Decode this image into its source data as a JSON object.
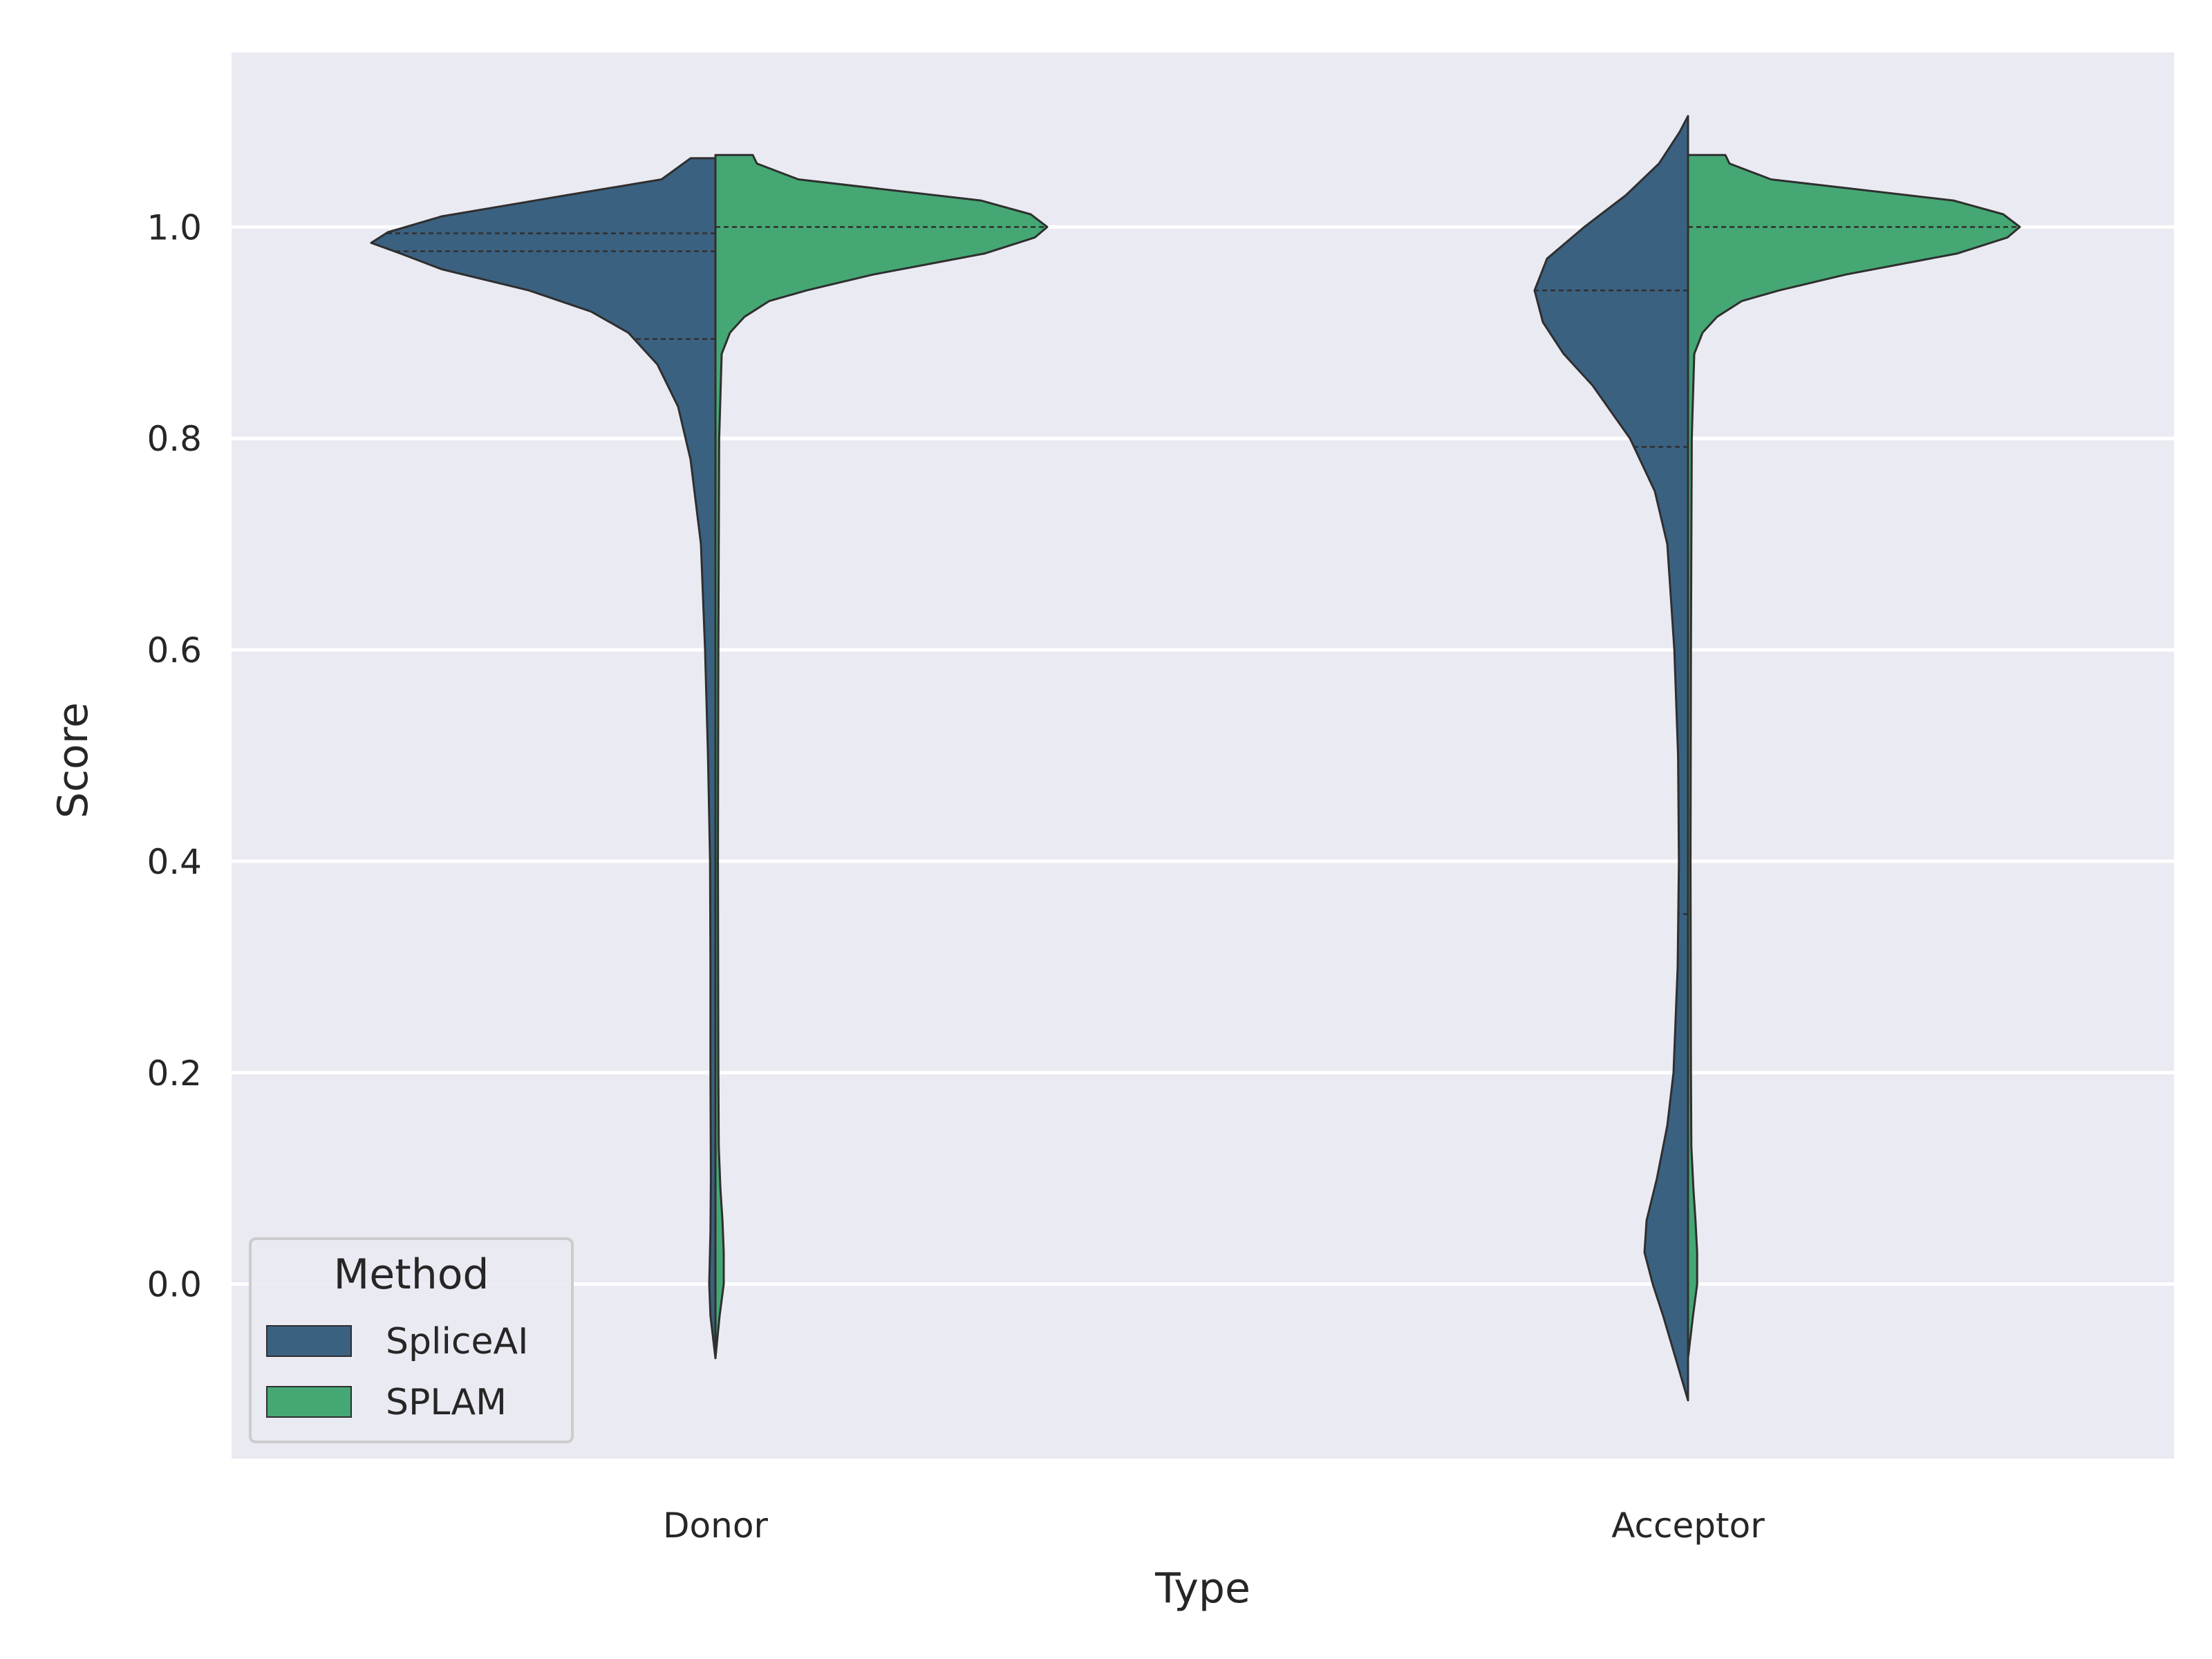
{
  "chart_data": {
    "type": "violin",
    "split": true,
    "inner": "quartile",
    "xlabel": "Type",
    "ylabel": "Score",
    "categories": [
      "Donor",
      "Acceptor"
    ],
    "y_ticks": [
      "0.0",
      "0.2",
      "0.4",
      "0.6",
      "0.8",
      "1.0"
    ],
    "ylim": [
      -0.165,
      1.165
    ],
    "grid": true,
    "legend": {
      "title": "Method",
      "placement": "lower-left",
      "entries": [
        "SpliceAI",
        "SPLAM"
      ]
    },
    "colors": {
      "SpliceAI": "#3b6181",
      "SPLAM": "#45a874",
      "background": "#eaeaf2",
      "grid": "#ffffff",
      "outline": "#2f2f2f"
    },
    "series": [
      {
        "name": "SpliceAI",
        "side": "left",
        "violins": [
          {
            "category": "Donor",
            "range": [
              -0.07,
              1.065
            ],
            "quartiles": [
              0.894,
              0.977,
              0.994
            ],
            "density": [
              [
                -0.07,
                0.0
              ],
              [
                -0.03,
                0.012
              ],
              [
                0.0,
                0.015
              ],
              [
                0.05,
                0.012
              ],
              [
                0.1,
                0.011
              ],
              [
                0.2,
                0.012
              ],
              [
                0.3,
                0.012
              ],
              [
                0.4,
                0.013
              ],
              [
                0.5,
                0.018
              ],
              [
                0.6,
                0.025
              ],
              [
                0.7,
                0.035
              ],
              [
                0.78,
                0.06
              ],
              [
                0.83,
                0.09
              ],
              [
                0.87,
                0.14
              ],
              [
                0.9,
                0.21
              ],
              [
                0.92,
                0.3
              ],
              [
                0.94,
                0.45
              ],
              [
                0.96,
                0.66
              ],
              [
                0.975,
                0.76
              ],
              [
                0.985,
                0.83
              ],
              [
                0.995,
                0.79
              ],
              [
                1.01,
                0.66
              ],
              [
                1.03,
                0.36
              ],
              [
                1.045,
                0.13
              ],
              [
                1.065,
                0.06
              ]
            ]
          },
          {
            "category": "Acceptor",
            "range": [
              -0.11,
              1.105
            ],
            "quartiles": [
              0.35,
              0.792,
              0.94
            ],
            "density": [
              [
                -0.11,
                0.0
              ],
              [
                -0.07,
                0.03
              ],
              [
                -0.03,
                0.06
              ],
              [
                0.0,
                0.085
              ],
              [
                0.03,
                0.105
              ],
              [
                0.06,
                0.1
              ],
              [
                0.1,
                0.075
              ],
              [
                0.15,
                0.05
              ],
              [
                0.2,
                0.035
              ],
              [
                0.3,
                0.025
              ],
              [
                0.4,
                0.022
              ],
              [
                0.5,
                0.024
              ],
              [
                0.6,
                0.033
              ],
              [
                0.7,
                0.05
              ],
              [
                0.75,
                0.08
              ],
              [
                0.8,
                0.14
              ],
              [
                0.85,
                0.23
              ],
              [
                0.88,
                0.3
              ],
              [
                0.91,
                0.35
              ],
              [
                0.94,
                0.37
              ],
              [
                0.97,
                0.34
              ],
              [
                1.0,
                0.25
              ],
              [
                1.03,
                0.15
              ],
              [
                1.06,
                0.07
              ],
              [
                1.09,
                0.02
              ],
              [
                1.105,
                0.0
              ]
            ]
          }
        ]
      },
      {
        "name": "SPLAM",
        "side": "right",
        "violins": [
          {
            "category": "Donor",
            "range": [
              -0.07,
              1.068
            ],
            "quartiles": [
              1.0
            ],
            "density": [
              [
                -0.07,
                0.0
              ],
              [
                -0.03,
                0.01
              ],
              [
                0.0,
                0.02
              ],
              [
                0.03,
                0.02
              ],
              [
                0.06,
                0.017
              ],
              [
                0.09,
                0.012
              ],
              [
                0.13,
                0.008
              ],
              [
                0.2,
                0.007
              ],
              [
                0.4,
                0.006
              ],
              [
                0.6,
                0.007
              ],
              [
                0.8,
                0.009
              ],
              [
                0.88,
                0.015
              ],
              [
                0.9,
                0.035
              ],
              [
                0.915,
                0.07
              ],
              [
                0.93,
                0.13
              ],
              [
                0.94,
                0.22
              ],
              [
                0.955,
                0.38
              ],
              [
                0.975,
                0.65
              ],
              [
                0.99,
                0.77
              ],
              [
                1.0,
                0.8
              ],
              [
                1.012,
                0.76
              ],
              [
                1.025,
                0.64
              ],
              [
                1.045,
                0.2
              ],
              [
                1.06,
                0.1
              ],
              [
                1.068,
                0.09
              ]
            ]
          },
          {
            "category": "Acceptor",
            "range": [
              -0.07,
              1.068
            ],
            "quartiles": [
              1.0
            ],
            "density": [
              [
                -0.07,
                0.0
              ],
              [
                -0.03,
                0.012
              ],
              [
                0.0,
                0.022
              ],
              [
                0.03,
                0.022
              ],
              [
                0.06,
                0.018
              ],
              [
                0.09,
                0.013
              ],
              [
                0.13,
                0.008
              ],
              [
                0.2,
                0.007
              ],
              [
                0.4,
                0.006
              ],
              [
                0.6,
                0.007
              ],
              [
                0.8,
                0.009
              ],
              [
                0.88,
                0.015
              ],
              [
                0.9,
                0.035
              ],
              [
                0.915,
                0.07
              ],
              [
                0.93,
                0.13
              ],
              [
                0.94,
                0.22
              ],
              [
                0.955,
                0.38
              ],
              [
                0.975,
                0.65
              ],
              [
                0.99,
                0.77
              ],
              [
                1.0,
                0.8
              ],
              [
                1.012,
                0.76
              ],
              [
                1.025,
                0.64
              ],
              [
                1.045,
                0.2
              ],
              [
                1.06,
                0.1
              ],
              [
                1.068,
                0.09
              ]
            ]
          }
        ]
      }
    ]
  }
}
